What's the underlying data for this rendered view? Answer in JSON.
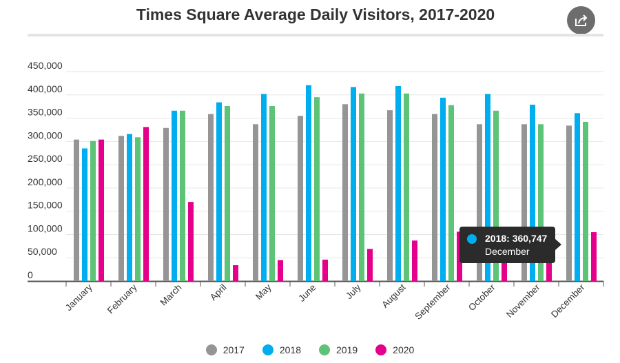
{
  "header": {
    "title": "Times Square Average Daily Visitors, 2017-2020",
    "share_icon": "share-icon"
  },
  "chart_data": {
    "type": "bar",
    "title": "Times Square Average Daily Visitors, 2017-2020",
    "xlabel": "",
    "ylabel": "",
    "ylim": [
      0,
      450000
    ],
    "yticks": [
      0,
      50000,
      100000,
      150000,
      200000,
      250000,
      300000,
      350000,
      400000,
      450000
    ],
    "ytick_labels": [
      "0",
      "50,000",
      "100,000",
      "150,000",
      "200,000",
      "250,000",
      "300,000",
      "350,000",
      "400,000",
      "450,000"
    ],
    "grid": true,
    "legend_position": "bottom-center",
    "categories": [
      "January",
      "February",
      "March",
      "April",
      "May",
      "June",
      "July",
      "August",
      "September",
      "October",
      "November",
      "December"
    ],
    "series": [
      {
        "name": "2017",
        "color": "#959595",
        "values": [
          304000,
          312000,
          329000,
          359000,
          337000,
          355000,
          380000,
          367000,
          359000,
          337000,
          337000,
          334000
        ]
      },
      {
        "name": "2018",
        "color": "#00aeef",
        "values": [
          285000,
          316000,
          366000,
          384000,
          402000,
          421000,
          417000,
          419000,
          394000,
          402000,
          379000,
          360747
        ]
      },
      {
        "name": "2019",
        "color": "#5dc377",
        "values": [
          301000,
          309000,
          366000,
          376000,
          376000,
          395000,
          403000,
          403000,
          378000,
          366000,
          337000,
          342000
        ]
      },
      {
        "name": "2020",
        "color": "#e5008c",
        "values": [
          304000,
          331000,
          170000,
          34000,
          45000,
          46000,
          69000,
          87000,
          106000,
          100000,
          98000,
          105000
        ]
      }
    ]
  },
  "tooltip": {
    "value_text": "2018: 360,747",
    "label_text": "December",
    "color": "#00aeef"
  }
}
